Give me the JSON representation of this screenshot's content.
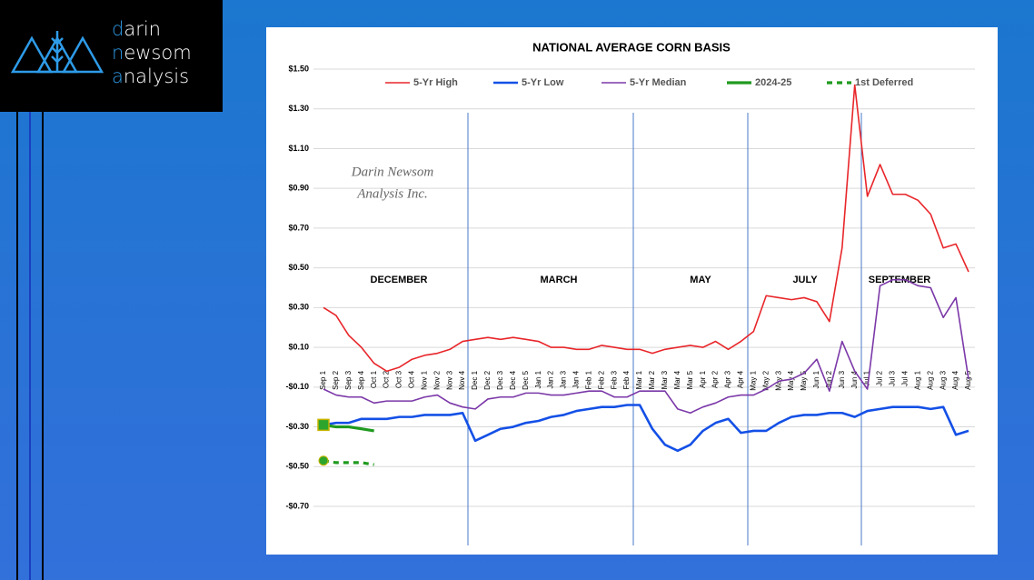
{
  "logo": {
    "lines": [
      "darin",
      "newsom",
      "analysis"
    ]
  },
  "chart_data": {
    "type": "line",
    "title": "NATIONAL AVERAGE CORN BASIS",
    "watermark": [
      "Darin Newsom",
      "Analysis Inc."
    ],
    "annotations": [
      "DECEMBER",
      "MARCH",
      "MAY",
      "JULY",
      "SEPTEMBER"
    ],
    "categories": [
      "Sep 1",
      "Sep 2",
      "Sep 3",
      "Sep 4",
      "Oct 1",
      "Oct 2",
      "Oct 3",
      "Oct 4",
      "Nov 1",
      "Nov 2",
      "Nov 3",
      "Nov 4",
      "Dec 1",
      "Dec 2",
      "Dec 3",
      "Dec 4",
      "Dec 5",
      "Jan 1",
      "Jan 2",
      "Jan 3",
      "Jan 4",
      "Feb 1",
      "Feb 2",
      "Feb 3",
      "Feb 4",
      "Mar 1",
      "Mar 2",
      "Mar 3",
      "Mar 4",
      "Mar 5",
      "Apr 1",
      "Apr 2",
      "Apr 3",
      "Apr 4",
      "May 1",
      "May 2",
      "May 3",
      "May 4",
      "May 5",
      "Jun 1",
      "Jun 2",
      "Jun 3",
      "Jun 4",
      "Jul 1",
      "Jul 2",
      "Jul 3",
      "Jul 4",
      "Aug 1",
      "Aug 2",
      "Aug 3",
      "Aug 4",
      "Aug 5"
    ],
    "series": [
      {
        "name": "5-Yr High",
        "color": "#e8262a",
        "width": 1.6,
        "values": [
          0.3,
          0.26,
          0.16,
          0.1,
          0.02,
          -0.02,
          0.0,
          0.04,
          0.06,
          0.07,
          0.09,
          0.13,
          0.14,
          0.15,
          0.14,
          0.15,
          0.14,
          0.13,
          0.1,
          0.1,
          0.09,
          0.09,
          0.11,
          0.1,
          0.09,
          0.09,
          0.07,
          0.09,
          0.1,
          0.11,
          0.1,
          0.13,
          0.09,
          0.13,
          0.18,
          0.36,
          0.35,
          0.34,
          0.35,
          0.33,
          0.23,
          0.6,
          1.42,
          0.86,
          1.02,
          0.87,
          0.87,
          0.84,
          0.77,
          0.6,
          0.62,
          0.48
        ]
      },
      {
        "name": "5-Yr Low",
        "color": "#1450e6",
        "width": 2.6,
        "values": [
          -0.29,
          -0.28,
          -0.28,
          -0.26,
          -0.26,
          -0.26,
          -0.25,
          -0.25,
          -0.24,
          -0.24,
          -0.24,
          -0.23,
          -0.37,
          -0.34,
          -0.31,
          -0.3,
          -0.28,
          -0.27,
          -0.25,
          -0.24,
          -0.22,
          -0.21,
          -0.2,
          -0.2,
          -0.19,
          -0.19,
          -0.31,
          -0.39,
          -0.42,
          -0.39,
          -0.32,
          -0.28,
          -0.26,
          -0.33,
          -0.32,
          -0.32,
          -0.28,
          -0.25,
          -0.24,
          -0.24,
          -0.23,
          -0.23,
          -0.25,
          -0.22,
          -0.21,
          -0.2,
          -0.2,
          -0.2,
          -0.21,
          -0.2,
          -0.34,
          -0.32
        ]
      },
      {
        "name": "5-Yr Median",
        "color": "#7b38a8",
        "width": 1.6,
        "values": [
          -0.11,
          -0.14,
          -0.15,
          -0.15,
          -0.18,
          -0.17,
          -0.17,
          -0.17,
          -0.15,
          -0.14,
          -0.18,
          -0.2,
          -0.21,
          -0.16,
          -0.15,
          -0.15,
          -0.13,
          -0.13,
          -0.14,
          -0.14,
          -0.13,
          -0.12,
          -0.12,
          -0.15,
          -0.15,
          -0.12,
          -0.12,
          -0.12,
          -0.21,
          -0.23,
          -0.2,
          -0.18,
          -0.15,
          -0.14,
          -0.14,
          -0.11,
          -0.07,
          -0.06,
          -0.03,
          0.04,
          -0.12,
          0.13,
          -0.02,
          -0.11,
          0.41,
          0.44,
          0.44,
          0.41,
          0.4,
          0.25,
          0.35,
          -0.06
        ]
      },
      {
        "name": "2024-25",
        "color": "#1f9a1f",
        "width": 3.2,
        "marker": "square",
        "values": [
          -0.29,
          -0.3,
          -0.3,
          -0.31,
          -0.32,
          null,
          null,
          null,
          null,
          null,
          null,
          null,
          null,
          null,
          null,
          null,
          null,
          null,
          null,
          null,
          null,
          null,
          null,
          null,
          null,
          null,
          null,
          null,
          null,
          null,
          null,
          null,
          null,
          null,
          null,
          null,
          null,
          null,
          null,
          null,
          null,
          null,
          null,
          null,
          null,
          null,
          null,
          null,
          null,
          null,
          null,
          null
        ]
      },
      {
        "name": "1st Deferred",
        "color": "#1f9a1f",
        "width": 3.2,
        "dash": true,
        "marker": "circle",
        "values": [
          -0.47,
          -0.48,
          -0.48,
          -0.48,
          -0.49,
          null,
          null,
          null,
          null,
          null,
          null,
          null,
          null,
          null,
          null,
          null,
          null,
          null,
          null,
          null,
          null,
          null,
          null,
          null,
          null,
          null,
          null,
          null,
          null,
          null,
          null,
          null,
          null,
          null,
          null,
          null,
          null,
          null,
          null,
          null,
          null,
          null,
          null,
          null,
          null,
          null,
          null,
          null,
          null,
          null,
          null,
          null
        ]
      }
    ],
    "ylim": [
      -0.7,
      1.5
    ],
    "yticks": [
      {
        "value": 1.5,
        "label": "$1.50"
      },
      {
        "value": 1.3,
        "label": "$1.30"
      },
      {
        "value": 1.1,
        "label": "$1.10"
      },
      {
        "value": 0.9,
        "label": "$0.90"
      },
      {
        "value": 0.7,
        "label": "$0.70"
      },
      {
        "value": 0.5,
        "label": "$0.50"
      },
      {
        "value": 0.3,
        "label": "$0.30"
      },
      {
        "value": 0.1,
        "label": "$0.10"
      },
      {
        "value": -0.1,
        "label": "-$0.10"
      },
      {
        "value": -0.3,
        "label": "-$0.30"
      },
      {
        "value": -0.5,
        "label": "-$0.50"
      },
      {
        "value": -0.7,
        "label": "-$0.70"
      }
    ],
    "grid": true,
    "legend": "top"
  }
}
